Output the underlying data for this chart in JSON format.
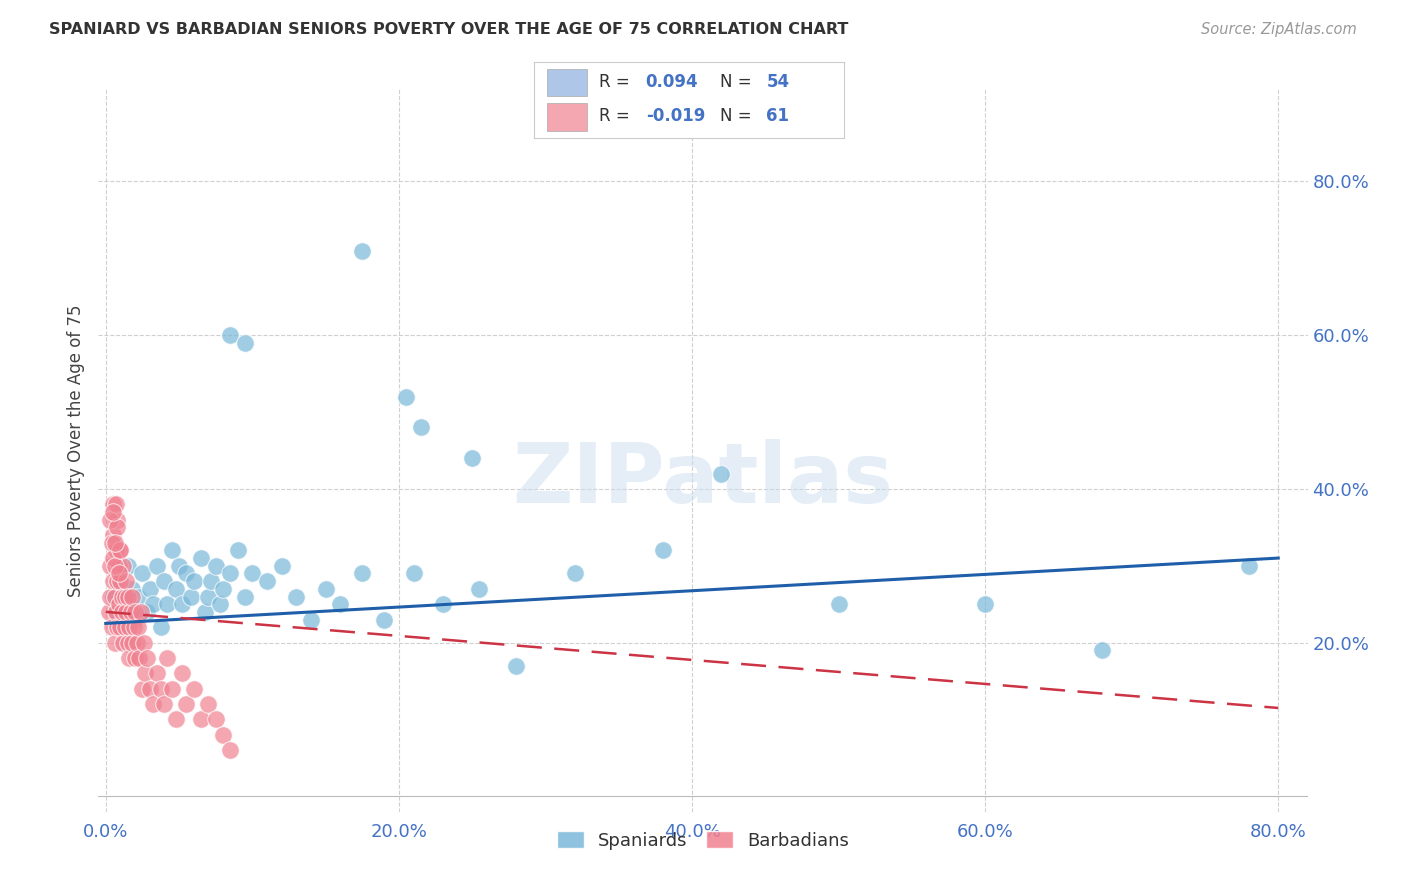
{
  "title": "SPANIARD VS BARBADIAN SENIORS POVERTY OVER THE AGE OF 75 CORRELATION CHART",
  "source": "Source: ZipAtlas.com",
  "ylabel": "Seniors Poverty Over the Age of 75",
  "xlim": [
    -0.005,
    0.82
  ],
  "ylim": [
    -0.02,
    0.92
  ],
  "x_ticks": [
    0.0,
    0.2,
    0.4,
    0.6,
    0.8
  ],
  "y_ticks": [
    0.2,
    0.4,
    0.6,
    0.8
  ],
  "watermark": "ZIPatlas",
  "legend_entries": [
    {
      "color": "#aec6e8",
      "R": "0.094",
      "N": "54"
    },
    {
      "color": "#f4a7b0",
      "R": "-0.019",
      "N": "61"
    }
  ],
  "spaniards_color": "#7ab8d9",
  "barbadians_color": "#f08090",
  "spaniards_x": [
    0.005,
    0.008,
    0.01,
    0.012,
    0.015,
    0.015,
    0.018,
    0.02,
    0.022,
    0.025,
    0.028,
    0.03,
    0.032,
    0.035,
    0.038,
    0.04,
    0.042,
    0.045,
    0.048,
    0.05,
    0.052,
    0.055,
    0.058,
    0.06,
    0.065,
    0.068,
    0.07,
    0.072,
    0.075,
    0.078,
    0.08,
    0.085,
    0.09,
    0.095,
    0.1,
    0.11,
    0.12,
    0.13,
    0.14,
    0.15,
    0.16,
    0.175,
    0.19,
    0.21,
    0.23,
    0.255,
    0.28,
    0.32,
    0.38,
    0.42,
    0.5,
    0.6,
    0.68,
    0.78
  ],
  "spaniards_y": [
    0.26,
    0.24,
    0.28,
    0.22,
    0.3,
    0.25,
    0.27,
    0.23,
    0.26,
    0.29,
    0.24,
    0.27,
    0.25,
    0.3,
    0.22,
    0.28,
    0.25,
    0.32,
    0.27,
    0.3,
    0.25,
    0.29,
    0.26,
    0.28,
    0.31,
    0.24,
    0.26,
    0.28,
    0.3,
    0.25,
    0.27,
    0.29,
    0.32,
    0.26,
    0.29,
    0.28,
    0.3,
    0.26,
    0.23,
    0.27,
    0.25,
    0.29,
    0.23,
    0.29,
    0.25,
    0.27,
    0.17,
    0.29,
    0.32,
    0.42,
    0.25,
    0.25,
    0.19,
    0.3
  ],
  "spaniards_y_outliers": [
    0.71,
    0.6,
    0.59,
    0.52,
    0.48,
    0.44
  ],
  "spaniards_x_outliers": [
    0.175,
    0.085,
    0.095,
    0.205,
    0.215,
    0.25
  ],
  "barbadians_x": [
    0.002,
    0.003,
    0.003,
    0.004,
    0.005,
    0.005,
    0.005,
    0.006,
    0.006,
    0.007,
    0.007,
    0.008,
    0.008,
    0.008,
    0.009,
    0.009,
    0.01,
    0.01,
    0.01,
    0.011,
    0.011,
    0.012,
    0.012,
    0.013,
    0.013,
    0.014,
    0.014,
    0.015,
    0.015,
    0.016,
    0.016,
    0.017,
    0.018,
    0.018,
    0.019,
    0.02,
    0.02,
    0.021,
    0.022,
    0.023,
    0.024,
    0.025,
    0.026,
    0.027,
    0.028,
    0.03,
    0.032,
    0.035,
    0.038,
    0.04,
    0.042,
    0.045,
    0.048,
    0.052,
    0.055,
    0.06,
    0.065,
    0.07,
    0.075,
    0.08,
    0.085
  ],
  "barbadians_y": [
    0.24,
    0.3,
    0.26,
    0.22,
    0.28,
    0.34,
    0.38,
    0.2,
    0.26,
    0.32,
    0.24,
    0.28,
    0.22,
    0.36,
    0.25,
    0.3,
    0.22,
    0.28,
    0.32,
    0.26,
    0.24,
    0.2,
    0.3,
    0.26,
    0.22,
    0.28,
    0.24,
    0.2,
    0.26,
    0.22,
    0.18,
    0.24,
    0.2,
    0.26,
    0.22,
    0.18,
    0.24,
    0.2,
    0.22,
    0.18,
    0.24,
    0.14,
    0.2,
    0.16,
    0.18,
    0.14,
    0.12,
    0.16,
    0.14,
    0.12,
    0.18,
    0.14,
    0.1,
    0.16,
    0.12,
    0.14,
    0.1,
    0.12,
    0.1,
    0.08,
    0.06
  ],
  "barbadians_y_high": [
    0.36,
    0.33,
    0.31,
    0.3,
    0.38,
    0.35,
    0.29,
    0.32,
    0.37,
    0.33
  ],
  "barbadians_x_high": [
    0.003,
    0.004,
    0.005,
    0.006,
    0.007,
    0.008,
    0.009,
    0.01,
    0.005,
    0.006
  ],
  "blue_line_x": [
    0.0,
    0.8
  ],
  "blue_line_y": [
    0.225,
    0.31
  ],
  "pink_line_x": [
    0.0,
    0.8
  ],
  "pink_line_y": [
    0.24,
    0.115
  ],
  "title_color": "#333333",
  "axis_tick_color": "#4472c4",
  "grid_color": "#d0d0d0",
  "bg_color": "#ffffff"
}
